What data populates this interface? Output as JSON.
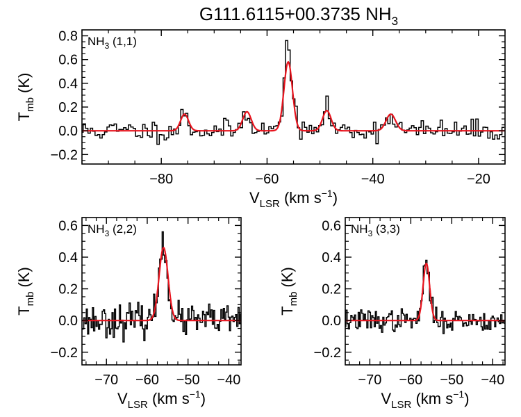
{
  "figure": {
    "title_main": "G111.6115+00.3735 NH",
    "title_sub": "3"
  },
  "colors": {
    "data": "#000000",
    "fit": "#e8141e",
    "axes": "#000000"
  },
  "chart_data": [
    {
      "type": "line",
      "panel_label": {
        "main": "NH",
        "sub": "3",
        "rest": " (1,1)"
      },
      "xlabel": {
        "main": "V",
        "sub": "LSR",
        "rest": " (km s",
        "sup": "−1",
        "close": ")"
      },
      "ylabel": {
        "main": "T",
        "sub": "mb",
        "rest": " (K)"
      },
      "xlim": [
        -95,
        -15
      ],
      "ylim": [
        -0.28,
        0.85
      ],
      "xticks": [
        -80,
        -60,
        -40,
        -20
      ],
      "yticks": [
        -0.2,
        0.0,
        0.2,
        0.4,
        0.6,
        0.8
      ],
      "xtick_labels": [
        "−80",
        "−60",
        "−40",
        "−20"
      ],
      "ytick_labels": [
        "−0.2",
        "0.0",
        "0.2",
        "0.4",
        "0.6",
        "0.8"
      ],
      "fit_components": [
        {
          "center": -75.6,
          "amplitude": 0.14,
          "sigma": 0.75
        },
        {
          "center": -63.8,
          "amplitude": 0.16,
          "sigma": 0.8
        },
        {
          "center": -56.0,
          "amplitude": 0.58,
          "sigma": 0.8
        },
        {
          "center": -48.7,
          "amplitude": 0.17,
          "sigma": 0.8
        },
        {
          "center": -36.6,
          "amplitude": 0.14,
          "sigma": 0.9
        }
      ],
      "noise": {
        "rms": 0.045,
        "seed": 11,
        "channel_width": 0.45
      },
      "peak_overrides": [
        {
          "x": -56.2,
          "y": 0.76
        },
        {
          "x": -55.7,
          "y": 0.68
        }
      ]
    },
    {
      "type": "line",
      "panel_label": {
        "main": "NH",
        "sub": "3",
        "rest": " (2,2)"
      },
      "xlabel": {
        "main": "V",
        "sub": "LSR",
        "rest": " (km s",
        "sup": "−1",
        "close": ")"
      },
      "ylabel": {
        "main": "T",
        "sub": "mb",
        "rest": " (K)"
      },
      "xlim": [
        -76,
        -37
      ],
      "ylim": [
        -0.28,
        0.65
      ],
      "xticks": [
        -70,
        -60,
        -50,
        -40
      ],
      "yticks": [
        -0.2,
        0.0,
        0.2,
        0.4,
        0.6
      ],
      "xtick_labels": [
        "−70",
        "−60",
        "−50",
        "−40"
      ],
      "ytick_labels": [
        "−0.2",
        "0.0",
        "0.2",
        "0.4",
        "0.6"
      ],
      "fit_components": [
        {
          "center": -56.0,
          "amplitude": 0.46,
          "sigma": 1.1
        }
      ],
      "noise": {
        "rms": 0.05,
        "seed": 23,
        "channel_width": 0.3
      },
      "peak_overrides": [
        {
          "x": -56.2,
          "y": 0.56
        }
      ]
    },
    {
      "type": "line",
      "panel_label": {
        "main": "NH",
        "sub": "3",
        "rest": " (3,3)"
      },
      "xlabel": {
        "main": "V",
        "sub": "LSR",
        "rest": " (km s",
        "sup": "−1",
        "close": ")"
      },
      "ylabel": {
        "main": "T",
        "sub": "mb",
        "rest": " (K)"
      },
      "xlim": [
        -76,
        -37
      ],
      "ylim": [
        -0.28,
        0.65
      ],
      "xticks": [
        -70,
        -60,
        -50,
        -40
      ],
      "yticks": [
        -0.2,
        0.0,
        0.2,
        0.4,
        0.6
      ],
      "xtick_labels": [
        "−70",
        "−60",
        "−50",
        "−40"
      ],
      "ytick_labels": [
        "−0.2",
        "0.0",
        "0.2",
        "0.4",
        "0.6"
      ],
      "fit_components": [
        {
          "center": -56.2,
          "amplitude": 0.36,
          "sigma": 0.8
        }
      ],
      "noise": {
        "rms": 0.035,
        "seed": 37,
        "channel_width": 0.3
      },
      "peak_overrides": [
        {
          "x": -56.3,
          "y": 0.38
        }
      ]
    }
  ]
}
